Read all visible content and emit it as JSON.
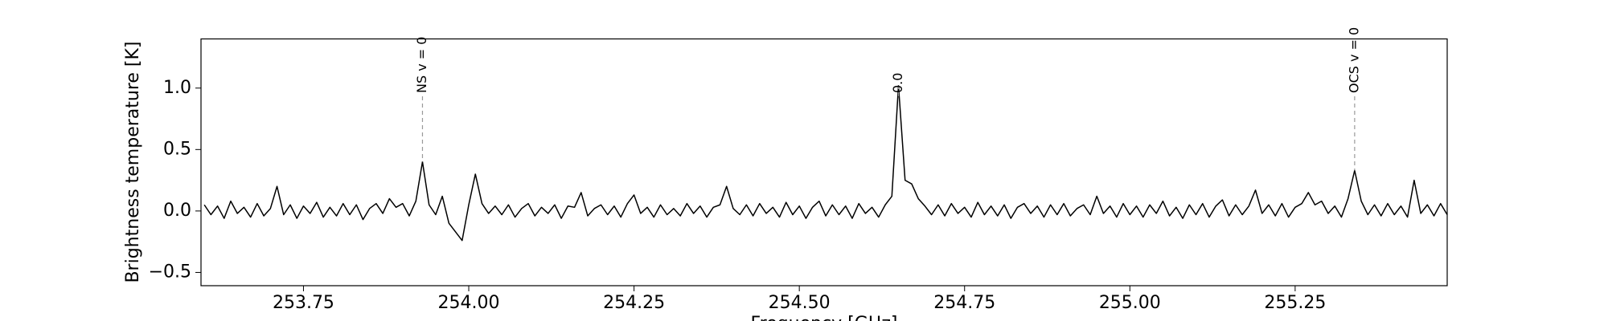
{
  "chart_data": {
    "type": "line",
    "xlabel": "Frequency [GHz]",
    "ylabel": "Brightness temperature [K]",
    "xlim": [
      253.595,
      255.48
    ],
    "ylim": [
      -0.608,
      1.4
    ],
    "xticks": [
      253.75,
      {
        "value": 254.0,
        "label": "254.00"
      },
      254.25,
      {
        "value": 254.5,
        "label": "254.50"
      },
      254.75,
      {
        "value": 255.0,
        "label": "255.00"
      },
      255.25
    ],
    "yticks": [
      {
        "value": -0.5,
        "label": "−0.5"
      },
      {
        "value": 0.0,
        "label": "0.0"
      },
      {
        "value": 0.5,
        "label": "0.5"
      },
      {
        "value": 1.0,
        "label": "1.0"
      }
    ],
    "annotations": [
      {
        "text": "NS v = 0",
        "x": 253.93,
        "y": 0.4
      },
      {
        "text": "0.0",
        "x": 254.65,
        "y": 1.02
      },
      {
        "text": "OCS v = 0",
        "x": 255.34,
        "y": 0.33
      }
    ],
    "x": [
      253.6,
      253.61,
      253.62,
      253.63,
      253.64,
      253.65,
      253.66,
      253.67,
      253.68,
      253.69,
      253.7,
      253.71,
      253.72,
      253.73,
      253.74,
      253.75,
      253.76,
      253.77,
      253.78,
      253.79,
      253.8,
      253.81,
      253.82,
      253.83,
      253.84,
      253.85,
      253.86,
      253.87,
      253.88,
      253.89,
      253.9,
      253.91,
      253.92,
      253.93,
      253.94,
      253.95,
      253.96,
      253.97,
      253.98,
      253.99,
      254.0,
      254.01,
      254.02,
      254.03,
      254.04,
      254.05,
      254.06,
      254.07,
      254.08,
      254.09,
      254.1,
      254.11,
      254.12,
      254.13,
      254.14,
      254.15,
      254.16,
      254.17,
      254.18,
      254.19,
      254.2,
      254.21,
      254.22,
      254.23,
      254.24,
      254.25,
      254.26,
      254.27,
      254.28,
      254.29,
      254.3,
      254.31,
      254.32,
      254.33,
      254.34,
      254.35,
      254.36,
      254.37,
      254.38,
      254.39,
      254.4,
      254.41,
      254.42,
      254.43,
      254.44,
      254.45,
      254.46,
      254.47,
      254.48,
      254.49,
      254.5,
      254.51,
      254.52,
      254.53,
      254.54,
      254.55,
      254.56,
      254.57,
      254.58,
      254.59,
      254.6,
      254.61,
      254.62,
      254.63,
      254.64,
      254.65,
      254.66,
      254.67,
      254.68,
      254.69,
      254.7,
      254.71,
      254.72,
      254.73,
      254.74,
      254.75,
      254.76,
      254.77,
      254.78,
      254.79,
      254.8,
      254.81,
      254.82,
      254.83,
      254.84,
      254.85,
      254.86,
      254.87,
      254.88,
      254.89,
      254.9,
      254.91,
      254.92,
      254.93,
      254.94,
      254.95,
      254.96,
      254.97,
      254.98,
      254.99,
      255.0,
      255.01,
      255.02,
      255.03,
      255.04,
      255.05,
      255.06,
      255.07,
      255.08,
      255.09,
      255.1,
      255.11,
      255.12,
      255.13,
      255.14,
      255.15,
      255.16,
      255.17,
      255.18,
      255.19,
      255.2,
      255.21,
      255.22,
      255.23,
      255.24,
      255.25,
      255.26,
      255.27,
      255.28,
      255.29,
      255.3,
      255.31,
      255.32,
      255.33,
      255.34,
      255.35,
      255.36,
      255.37,
      255.38,
      255.39,
      255.4,
      255.41,
      255.42,
      255.43,
      255.44,
      255.45,
      255.46,
      255.47,
      255.48
    ],
    "series": [
      {
        "color": "#000000",
        "values": [
          0.05,
          -0.03,
          0.04,
          -0.06,
          0.08,
          -0.02,
          0.03,
          -0.05,
          0.06,
          -0.04,
          0.02,
          0.2,
          -0.03,
          0.05,
          -0.06,
          0.04,
          -0.02,
          0.07,
          -0.05,
          0.03,
          -0.04,
          0.06,
          -0.03,
          0.05,
          -0.07,
          0.02,
          0.06,
          -0.02,
          0.1,
          0.03,
          0.06,
          -0.04,
          0.08,
          0.4,
          0.05,
          -0.03,
          0.12,
          -0.1,
          -0.17,
          -0.24,
          0.05,
          0.3,
          0.06,
          -0.02,
          0.04,
          -0.03,
          0.05,
          -0.05,
          0.02,
          0.06,
          -0.04,
          0.03,
          -0.02,
          0.05,
          -0.06,
          0.04,
          0.03,
          0.15,
          -0.04,
          0.02,
          0.05,
          -0.03,
          0.04,
          -0.05,
          0.06,
          0.13,
          -0.02,
          0.03,
          -0.05,
          0.05,
          -0.03,
          0.02,
          -0.04,
          0.06,
          -0.02,
          0.04,
          -0.05,
          0.03,
          0.05,
          0.2,
          0.02,
          -0.03,
          0.05,
          -0.04,
          0.06,
          -0.02,
          0.03,
          -0.05,
          0.07,
          -0.03,
          0.04,
          -0.06,
          0.03,
          0.08,
          -0.04,
          0.05,
          -0.03,
          0.04,
          -0.06,
          0.06,
          -0.02,
          0.03,
          -0.05,
          0.05,
          0.12,
          1.02,
          0.25,
          0.22,
          0.1,
          0.04,
          -0.03,
          0.05,
          -0.04,
          0.06,
          -0.02,
          0.03,
          -0.05,
          0.07,
          -0.03,
          0.04,
          -0.04,
          0.05,
          -0.06,
          0.03,
          0.06,
          -0.02,
          0.04,
          -0.05,
          0.05,
          -0.03,
          0.06,
          -0.04,
          0.02,
          0.05,
          -0.03,
          0.12,
          -0.02,
          0.04,
          -0.05,
          0.06,
          -0.03,
          0.04,
          -0.05,
          0.05,
          -0.02,
          0.08,
          -0.04,
          0.03,
          -0.06,
          0.05,
          -0.03,
          0.06,
          -0.05,
          0.04,
          0.09,
          -0.04,
          0.05,
          -0.03,
          0.04,
          0.17,
          -0.02,
          0.05,
          -0.04,
          0.06,
          -0.05,
          0.03,
          0.06,
          0.15,
          0.05,
          0.08,
          -0.02,
          0.04,
          -0.05,
          0.1,
          0.33,
          0.08,
          -0.03,
          0.05,
          -0.04,
          0.06,
          -0.03,
          0.04,
          -0.05,
          0.25,
          -0.02,
          0.05,
          -0.04,
          0.06,
          -0.03
        ]
      }
    ]
  }
}
